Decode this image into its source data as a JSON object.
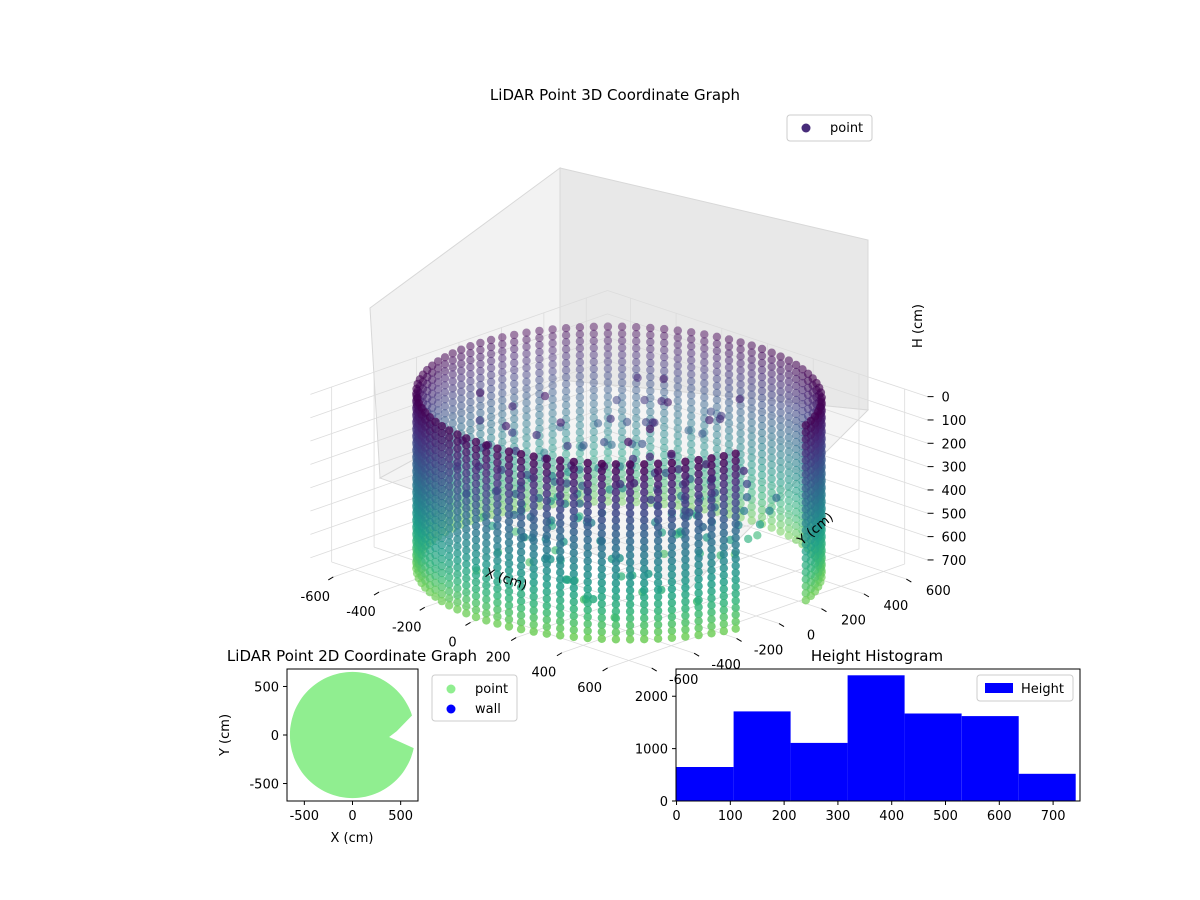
{
  "chart_data": [
    {
      "type": "scatter",
      "title": "LiDAR Point 3D Coordinate Graph",
      "xlabel": "X (cm)",
      "ylabel": "Y (cm)",
      "zlabel": "H (cm)",
      "legend": {
        "placement": "top-right",
        "entries": [
          {
            "label": "point",
            "color": "#472c7a"
          }
        ]
      },
      "x_ticks": [
        -600,
        -400,
        -200,
        0,
        200,
        400,
        600
      ],
      "y_ticks": [
        -600,
        -400,
        -200,
        0,
        200,
        400,
        600
      ],
      "z_ticks": [
        0,
        100,
        200,
        300,
        400,
        500,
        600,
        700
      ],
      "xlim": [
        -700,
        700
      ],
      "ylim": [
        -700,
        700
      ],
      "zlim": [
        750,
        0
      ],
      "grid": true,
      "colormap": "viridis",
      "structure": {
        "wall_radius_cm": 650,
        "wall_height_range_cm": [
          0,
          750
        ],
        "wall_gap_angle_deg": [
          -12,
          18
        ]
      }
    },
    {
      "type": "scatter",
      "title": "LiDAR Point 2D Coordinate Graph",
      "xlabel": "X (cm)",
      "ylabel": "Y (cm)",
      "x_ticks": [
        -500,
        0,
        500
      ],
      "y_ticks": [
        -500,
        0,
        500
      ],
      "xlim": [
        -680,
        680
      ],
      "ylim": [
        -680,
        680
      ],
      "legend": {
        "placement": "outside-right",
        "entries": [
          {
            "label": "point",
            "color": "#90ee90"
          },
          {
            "label": "wall",
            "color": "#0000ff"
          }
        ]
      },
      "structure": {
        "disc_radius_cm": 650,
        "gap_angle_deg": [
          -12,
          18
        ]
      }
    },
    {
      "type": "bar",
      "title": "Height Histogram",
      "legend": {
        "placement": "top-right",
        "entries": [
          {
            "label": "Height",
            "color": "#0000ff"
          }
        ]
      },
      "bin_edges": [
        0,
        106,
        212,
        318,
        424,
        530,
        636,
        742
      ],
      "values": [
        650,
        1710,
        1110,
        2400,
        1670,
        1620,
        520
      ],
      "x_ticks": [
        0,
        100,
        200,
        300,
        400,
        500,
        600,
        700
      ],
      "y_ticks": [
        0,
        1000,
        2000
      ],
      "xlim": [
        -1,
        750
      ],
      "ylim": [
        0,
        2520
      ],
      "color": "#0000ff"
    }
  ]
}
